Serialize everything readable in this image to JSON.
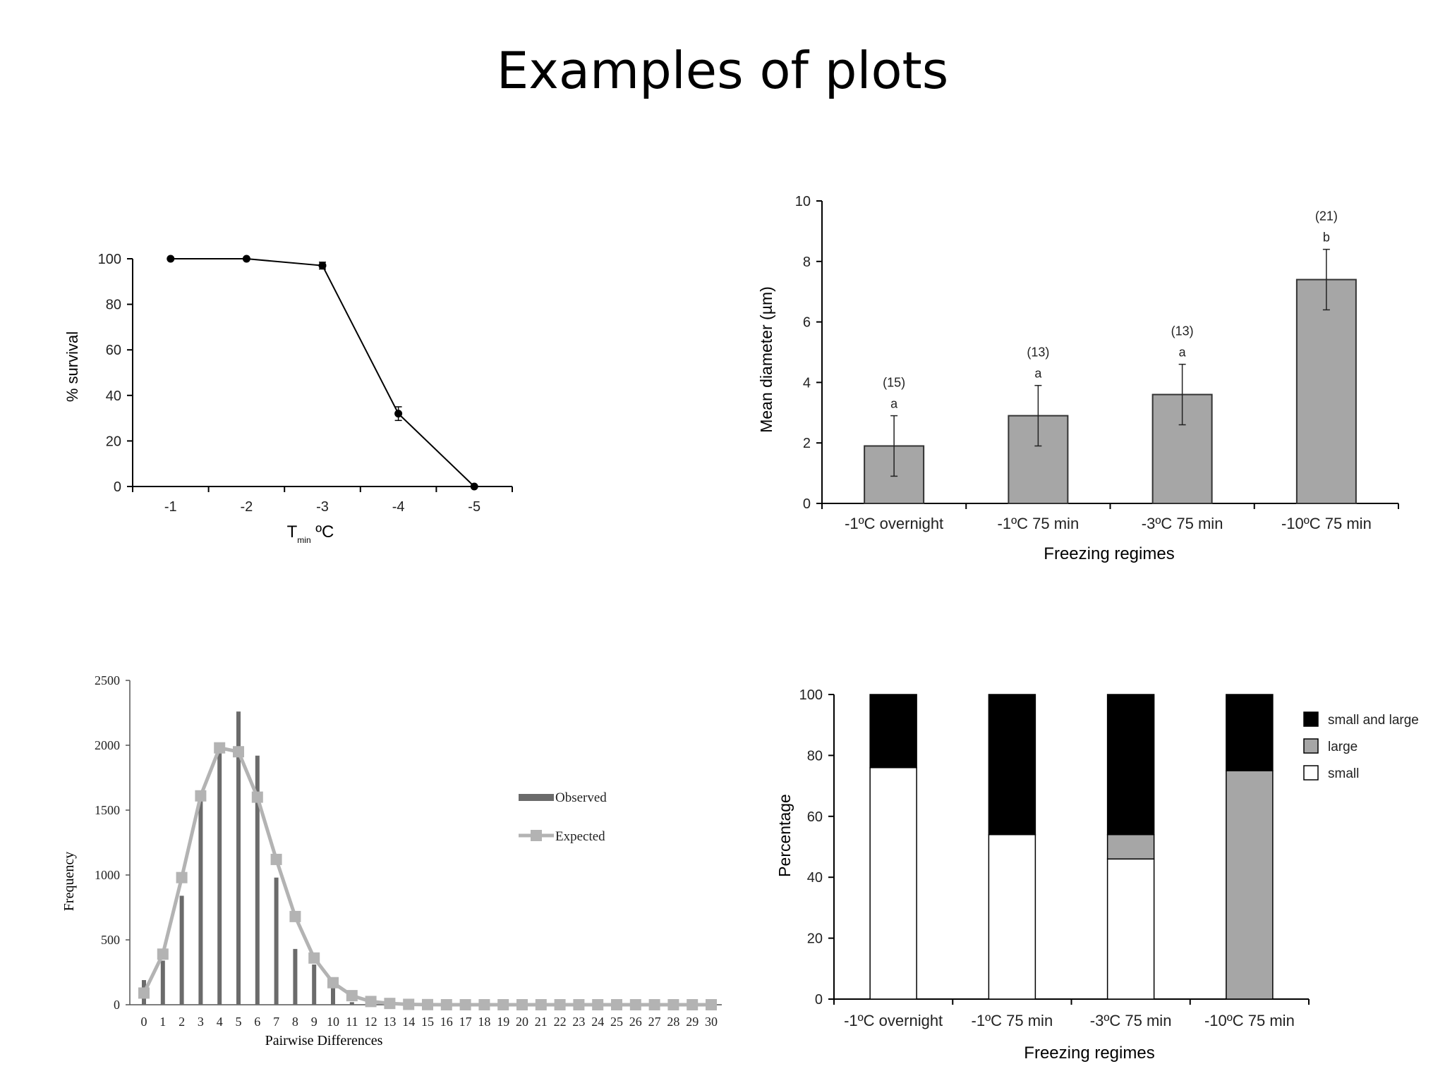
{
  "slide": {
    "title": "Examples of plots"
  },
  "chart_data": [
    {
      "id": "survival",
      "type": "line",
      "title": "",
      "xlabel_main": "T",
      "xlabel_sub": "min",
      "xlabel_unit": " ºC",
      "ylabel": "% survival",
      "x": [
        -1,
        -2,
        -3,
        -4,
        -5
      ],
      "x_tick_labels": [
        "-1",
        "-2",
        "-3",
        "-4",
        "-5"
      ],
      "y": [
        100,
        100,
        97,
        32,
        0
      ],
      "yerr": [
        0,
        0,
        1.5,
        3,
        0
      ],
      "yticks": [
        0,
        20,
        40,
        60,
        80,
        100
      ],
      "ylim": [
        0,
        100
      ],
      "color": "#000000"
    },
    {
      "id": "mean-diameter",
      "type": "bar",
      "categories": [
        "-1ºC overnight",
        "-1ºC 75 min",
        "-3ºC 75 min",
        "-10ºC 75 min"
      ],
      "values": [
        1.9,
        2.9,
        3.6,
        7.4
      ],
      "yerr": [
        1.0,
        1.0,
        1.0,
        1.0
      ],
      "n_labels": [
        "(15)",
        "(13)",
        "(13)",
        "(21)"
      ],
      "sig_letters": [
        "a",
        "a",
        "a",
        "b"
      ],
      "xlabel": "Freezing regimes",
      "ylabel": "Mean diameter (µm)",
      "yticks": [
        0,
        2,
        4,
        6,
        8,
        10
      ],
      "ylim": [
        0,
        10
      ],
      "bar_color": "#a6a6a6"
    },
    {
      "id": "pairwise",
      "type": "bar",
      "xlabel": "Pairwise Differences",
      "ylabel": "Frequency",
      "categories": [
        "0",
        "1",
        "2",
        "3",
        "4",
        "5",
        "6",
        "7",
        "8",
        "9",
        "10",
        "11",
        "12",
        "13",
        "14",
        "15",
        "16",
        "17",
        "18",
        "19",
        "20",
        "21",
        "22",
        "23",
        "24",
        "25",
        "26",
        "27",
        "28",
        "29",
        "30"
      ],
      "yticks": [
        0,
        500,
        1000,
        1500,
        2000,
        2500
      ],
      "ylim": [
        0,
        2500
      ],
      "series": [
        {
          "name": "Observed",
          "type": "bar",
          "color": "#6b6b6b",
          "values": [
            190,
            340,
            840,
            1580,
            1940,
            2260,
            1920,
            980,
            430,
            310,
            130,
            20,
            5,
            0,
            0,
            0,
            0,
            0,
            0,
            0,
            0,
            0,
            0,
            0,
            0,
            0,
            0,
            0,
            0,
            0,
            0
          ]
        },
        {
          "name": "Expected",
          "type": "line",
          "color": "#b3b3b3",
          "values": [
            90,
            390,
            980,
            1610,
            1980,
            1950,
            1600,
            1120,
            680,
            360,
            170,
            70,
            25,
            10,
            3,
            1,
            0,
            0,
            0,
            0,
            0,
            0,
            0,
            0,
            0,
            0,
            0,
            0,
            0,
            0,
            0
          ]
        }
      ],
      "legend_position": "right"
    },
    {
      "id": "percentage",
      "type": "bar",
      "stacked": true,
      "categories": [
        "-1ºC overnight",
        "-1ºC 75 min",
        "-3ºC 75 min",
        "-10ºC 75 min"
      ],
      "xlabel": "Freezing regimes",
      "ylabel": "Percentage",
      "yticks": [
        0,
        20,
        40,
        60,
        80,
        100
      ],
      "ylim": [
        0,
        100
      ],
      "series": [
        {
          "name": "small",
          "color": "#ffffff",
          "values": [
            76,
            54,
            46,
            0
          ]
        },
        {
          "name": "large",
          "color": "#a6a6a6",
          "values": [
            0,
            0,
            8,
            75
          ]
        },
        {
          "name": "small and large",
          "color": "#000000",
          "values": [
            24,
            46,
            46,
            25
          ]
        }
      ],
      "legend_order": [
        "small and large",
        "large",
        "small"
      ],
      "legend_position": "top-right"
    }
  ]
}
